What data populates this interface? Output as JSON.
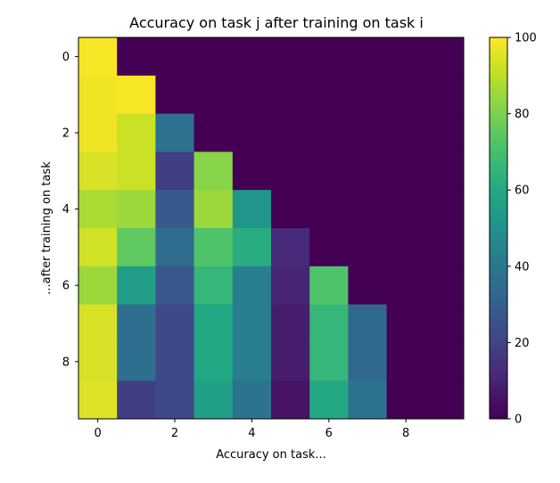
{
  "chart_data": {
    "type": "heatmap",
    "title": "Accuracy on task j after training on task i",
    "xlabel": "Accuracy on task...",
    "ylabel": "...after training on task",
    "colormap": "viridis",
    "x_ticks": [
      0,
      2,
      4,
      6,
      8
    ],
    "y_ticks": [
      0,
      2,
      4,
      6,
      8
    ],
    "x_range": [
      -0.5,
      9.5
    ],
    "y_range": [
      -0.5,
      9.5
    ],
    "colorbar": {
      "range": [
        0,
        100
      ],
      "ticks": [
        0,
        20,
        40,
        60,
        80,
        100
      ]
    },
    "rows": [
      [
        99,
        0,
        0,
        0,
        0,
        0,
        0,
        0,
        0,
        0
      ],
      [
        98,
        99,
        0,
        0,
        0,
        0,
        0,
        0,
        0,
        0
      ],
      [
        98,
        92,
        37,
        0,
        0,
        0,
        0,
        0,
        0,
        0
      ],
      [
        94,
        92,
        18,
        82,
        0,
        0,
        0,
        0,
        0,
        0
      ],
      [
        87,
        85,
        28,
        85,
        52,
        0,
        0,
        0,
        0,
        0
      ],
      [
        93,
        75,
        35,
        72,
        62,
        12,
        0,
        0,
        0,
        0
      ],
      [
        85,
        55,
        27,
        66,
        42,
        10,
        72,
        0,
        0,
        0
      ],
      [
        94,
        36,
        22,
        60,
        42,
        8,
        66,
        34,
        0,
        0
      ],
      [
        94,
        36,
        22,
        60,
        42,
        8,
        66,
        34,
        0,
        0
      ],
      [
        95,
        18,
        22,
        56,
        38,
        5,
        60,
        38,
        0,
        0
      ]
    ]
  }
}
